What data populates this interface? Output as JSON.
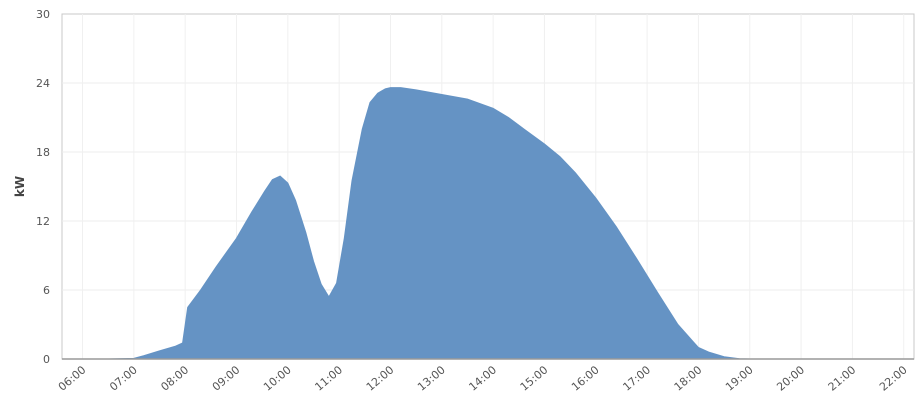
{
  "chart_data": {
    "type": "area",
    "title": "",
    "xlabel": "",
    "ylabel": "kW",
    "ylim": [
      0,
      30
    ],
    "yticks": [
      "0",
      "6",
      "12",
      "18",
      "24",
      "30"
    ],
    "xticks": [
      "06:00",
      "07:00",
      "08:00",
      "09:00",
      "10:00",
      "11:00",
      "12:00",
      "13:00",
      "14:00",
      "15:00",
      "16:00",
      "17:00",
      "18:00",
      "19:00",
      "20:00",
      "21:00",
      "22:00"
    ],
    "xlim_hours": [
      5.6,
      22.2
    ],
    "grid": true,
    "color": "#6593c4",
    "series": [
      {
        "x": [
          5.6,
          6.5,
          7.0,
          7.2,
          7.5,
          7.8,
          7.95,
          8.05,
          8.3,
          8.6,
          9.0,
          9.3,
          9.55,
          9.7,
          9.85,
          10.0,
          10.15,
          10.35,
          10.5,
          10.65,
          10.8,
          10.95,
          11.1,
          11.25,
          11.45,
          11.6,
          11.75,
          11.9,
          12.0,
          12.2,
          12.5,
          13.0,
          13.5,
          14.0,
          14.3,
          14.6,
          15.0,
          15.3,
          15.6,
          16.0,
          16.4,
          16.8,
          17.2,
          17.6,
          17.9,
          18.0,
          18.2,
          18.5,
          18.8,
          19.0,
          20.0,
          21.0,
          22.2
        ],
        "values": [
          0,
          0,
          0.05,
          0.3,
          0.7,
          1.1,
          1.4,
          4.5,
          6.0,
          8.0,
          10.5,
          12.8,
          14.6,
          15.6,
          15.9,
          15.3,
          13.8,
          11.0,
          8.5,
          6.5,
          5.4,
          6.6,
          10.5,
          15.5,
          20.0,
          22.3,
          23.1,
          23.5,
          23.6,
          23.6,
          23.4,
          23.0,
          22.6,
          21.8,
          21.0,
          20.0,
          18.7,
          17.6,
          16.2,
          14.0,
          11.5,
          8.7,
          5.8,
          3.0,
          1.5,
          1.0,
          0.6,
          0.2,
          0.02,
          0,
          0,
          0,
          0
        ]
      }
    ]
  }
}
